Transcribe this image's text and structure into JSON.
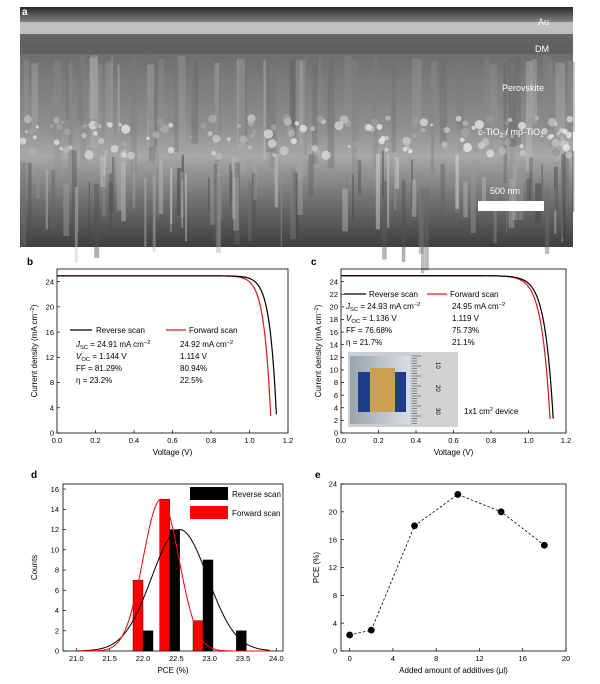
{
  "panel_a": {
    "letter": "a",
    "labels": {
      "au": "Au",
      "dm": "DM",
      "perovskite": "Perovskite",
      "tio2_main": "c-TiO",
      "tio2_sub": "2",
      "tio2_mid": " / mp-TiO",
      "tio2_sub2": "2"
    },
    "scale_bar": "500 nm"
  },
  "chart_data": [
    {
      "id": "b",
      "type": "line",
      "letter": "b",
      "xlabel": "Voltage (V)",
      "ylabel_main": "Current density (mA cm",
      "ylabel_sup": "−2",
      "ylabel_end": ")",
      "xlim": [
        0,
        1.2
      ],
      "ylim": [
        0,
        26
      ],
      "xticks": [
        0.0,
        0.2,
        0.4,
        0.6,
        0.8,
        1.0,
        1.2
      ],
      "xtick_labels": [
        "0.0",
        "0.2",
        "0.4",
        "0.6",
        "0.8",
        "1.0",
        "1.2"
      ],
      "yticks": [
        0,
        4,
        8,
        12,
        16,
        20,
        24
      ],
      "ytick_labels": [
        "0",
        "4",
        "8",
        "12",
        "16",
        "20",
        "24"
      ],
      "series": [
        {
          "name": "Reverse scan",
          "color": "#000000",
          "jsc": 24.91,
          "voc": 1.144,
          "knee": 0.035
        },
        {
          "name": "Forward scan",
          "color": "#e01818",
          "jsc": 24.92,
          "voc": 1.114,
          "knee": 0.035
        }
      ],
      "table": {
        "rows": [
          {
            "label": "J",
            "label_sub": "SC",
            "rev": "= 24.91 mA cm",
            "rev_sup": "−2",
            "fwd": "24.92 mA cm",
            "fwd_sup": "−2"
          },
          {
            "label": "V",
            "label_sub": "OC",
            "rev": "= 1.144 V",
            "rev_sup": "",
            "fwd": "1.114 V",
            "fwd_sup": ""
          },
          {
            "label": "FF",
            "label_sub": "",
            "rev": "= 81.29%",
            "rev_sup": "",
            "fwd": "80.94%",
            "fwd_sup": ""
          },
          {
            "label": "η",
            "label_sub": "",
            "rev": "= 23.2%",
            "rev_sup": "",
            "fwd": "22.5%",
            "fwd_sup": ""
          }
        ]
      }
    },
    {
      "id": "c",
      "type": "line",
      "letter": "c",
      "xlabel": "Voltage (V)",
      "ylabel_main": "Current density (mA cm",
      "ylabel_sup": "−2",
      "ylabel_end": ")",
      "xlim": [
        0,
        1.2
      ],
      "ylim": [
        0,
        26
      ],
      "xticks": [
        0.0,
        0.2,
        0.4,
        0.6,
        0.8,
        1.0,
        1.2
      ],
      "xtick_labels": [
        "0.0",
        "0.2",
        "0.4",
        "0.6",
        "0.8",
        "1.0",
        "1.2"
      ],
      "yticks": [
        0,
        2,
        4,
        6,
        8,
        10,
        12,
        14,
        16,
        18,
        20,
        22,
        24
      ],
      "ytick_labels": [
        "0",
        "2",
        "4",
        "6",
        "8",
        "10",
        "12",
        "14",
        "16",
        "18",
        "20",
        "22",
        "24"
      ],
      "series": [
        {
          "name": "Reverse scan",
          "color": "#000000",
          "jsc": 24.93,
          "voc": 1.136,
          "knee": 0.045
        },
        {
          "name": "Forward scan",
          "color": "#e01818",
          "jsc": 24.95,
          "voc": 1.119,
          "knee": 0.045
        }
      ],
      "table": {
        "rows": [
          {
            "label": "J",
            "label_sub": "SC",
            "rev": "= 24.93 mA cm",
            "rev_sup": "−2",
            "fwd": "24.95 mA cm",
            "fwd_sup": "−2"
          },
          {
            "label": "V",
            "label_sub": "OC",
            "rev": "= 1.136 V",
            "rev_sup": "",
            "fwd": "1.119 V",
            "fwd_sup": ""
          },
          {
            "label": "FF",
            "label_sub": "",
            "rev": "= 76.68%",
            "rev_sup": "",
            "fwd": "75.73%",
            "fwd_sup": ""
          },
          {
            "label": "η",
            "label_sub": "",
            "rev": "= 21.7%",
            "rev_sup": "",
            "fwd": "21.1%",
            "fwd_sup": ""
          }
        ]
      },
      "device_label_main": "1x1 cm",
      "device_label_sup": "2",
      "device_label_end": " device",
      "ruler_labels": [
        "10",
        "20",
        "30"
      ]
    },
    {
      "id": "d",
      "type": "bar",
      "letter": "d",
      "xlabel": "PCE (%)",
      "ylabel": "Counts",
      "xlim": [
        20.8,
        24.1
      ],
      "ylim": [
        0,
        16.5
      ],
      "xticks": [
        21.0,
        21.5,
        22.0,
        22.5,
        23.0,
        23.5,
        24.0
      ],
      "xtick_labels": [
        "21.0",
        "21.5",
        "22.0",
        "22.5",
        "23.0",
        "23.5",
        "24.0"
      ],
      "yticks": [
        0,
        2,
        4,
        6,
        8,
        10,
        12,
        14,
        16
      ],
      "ytick_labels": [
        "0",
        "2",
        "4",
        "6",
        "8",
        "10",
        "12",
        "14",
        "16"
      ],
      "bin_width": 0.15,
      "series": [
        {
          "name": "Reverse scan",
          "color": "#000000",
          "bins": [
            22.0,
            22.4,
            22.9,
            23.4
          ],
          "counts": [
            2,
            12,
            9,
            2
          ],
          "fit": {
            "amp": 12,
            "mu": 22.55,
            "sigma": 0.42
          }
        },
        {
          "name": "Forward scan",
          "color": "#ff0000",
          "bins": [
            21.85,
            22.25,
            22.75
          ],
          "counts": [
            7,
            15,
            3
          ],
          "fit": {
            "amp": 15,
            "mu": 22.27,
            "sigma": 0.27
          }
        }
      ]
    },
    {
      "id": "e",
      "type": "scatter",
      "letter": "e",
      "xlabel": "Added amount of additives (µl)",
      "ylabel": "PCE (%)",
      "xlim": [
        -0.8,
        20
      ],
      "ylim": [
        0,
        24
      ],
      "xticks": [
        0,
        4,
        8,
        12,
        16,
        20
      ],
      "xtick_labels": [
        "0",
        "4",
        "8",
        "12",
        "16",
        "20"
      ],
      "yticks": [
        0,
        4,
        8,
        12,
        16,
        20,
        24
      ],
      "ytick_labels": [
        "0",
        "4",
        "8",
        "12",
        "16",
        "20",
        "24"
      ],
      "x": [
        0,
        2,
        6,
        10,
        14,
        18
      ],
      "y": [
        2.3,
        3.0,
        18.0,
        22.5,
        20.0,
        15.2
      ]
    }
  ]
}
